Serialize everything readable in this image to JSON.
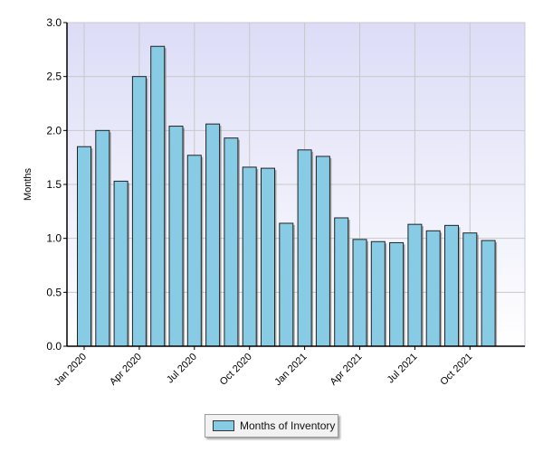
{
  "chart_data": {
    "type": "bar",
    "title": "",
    "xlabel": "",
    "ylabel": "Months",
    "ylim": [
      0,
      3
    ],
    "yticks": [
      "0.0",
      "0.5",
      "1.0",
      "1.5",
      "2.0",
      "2.5",
      "3.0"
    ],
    "grid": true,
    "legend_position": "bottom",
    "bar_color": "#87cbe4",
    "categories": [
      "Jan 2020",
      "Feb 2020",
      "Mar 2020",
      "Apr 2020",
      "May 2020",
      "Jun 2020",
      "Jul 2020",
      "Aug 2020",
      "Sep 2020",
      "Oct 2020",
      "Nov 2020",
      "Dec 2020",
      "Jan 2021",
      "Feb 2021",
      "Mar 2021",
      "Apr 2021",
      "May 2021",
      "Jun 2021",
      "Jul 2021",
      "Aug 2021",
      "Sep 2021",
      "Oct 2021",
      "Nov 2021"
    ],
    "x_tick_labels": [
      "Jan 2020",
      "Apr 2020",
      "Jul 2020",
      "Oct 2020",
      "Jan 2021",
      "Apr 2021",
      "Jul 2021",
      "Oct 2021"
    ],
    "series": [
      {
        "name": "Months of Inventory",
        "values": [
          1.85,
          2.0,
          1.53,
          2.5,
          2.78,
          2.04,
          1.77,
          2.06,
          1.93,
          1.66,
          1.65,
          1.14,
          1.82,
          1.76,
          1.19,
          0.99,
          0.97,
          0.96,
          1.13,
          1.07,
          1.12,
          1.05,
          0.98
        ]
      }
    ]
  }
}
